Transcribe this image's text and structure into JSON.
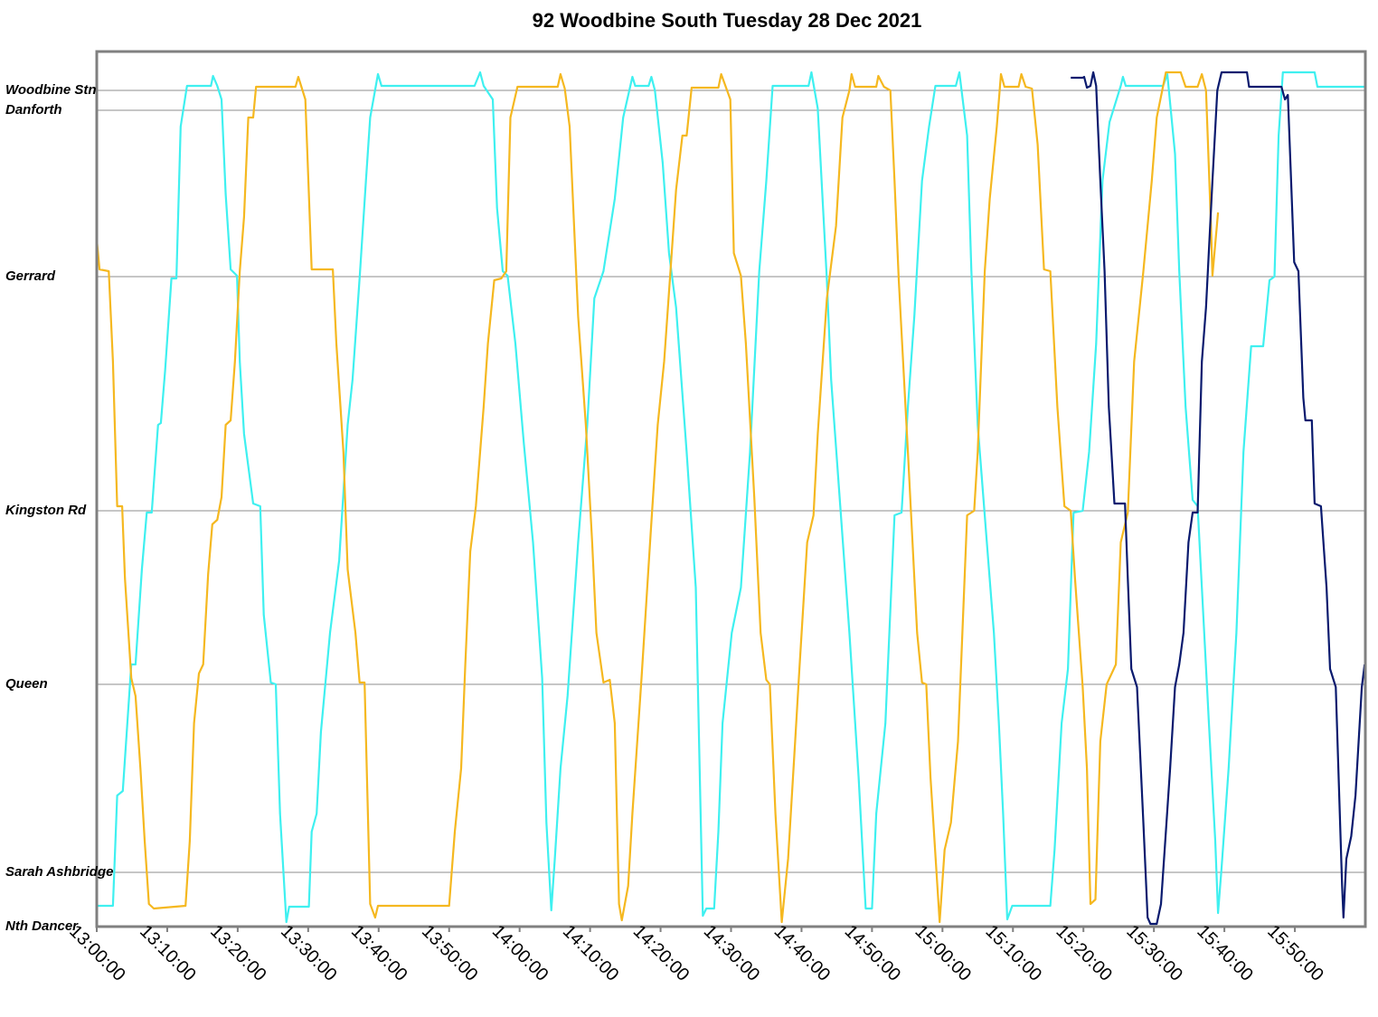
{
  "chart_data": {
    "type": "line",
    "title": "92 Woodbine South Tuesday 28 Dec 2021",
    "xlim": [
      780,
      960
    ],
    "xticks": [
      {
        "value": 780,
        "label": "13:00:00"
      },
      {
        "value": 790,
        "label": "13:10:00"
      },
      {
        "value": 800,
        "label": "13:20:00"
      },
      {
        "value": 810,
        "label": "13:30:00"
      },
      {
        "value": 820,
        "label": "13:40:00"
      },
      {
        "value": 830,
        "label": "13:50:00"
      },
      {
        "value": 840,
        "label": "14:00:00"
      },
      {
        "value": 850,
        "label": "14:10:00"
      },
      {
        "value": 860,
        "label": "14:20:00"
      },
      {
        "value": 870,
        "label": "14:30:00"
      },
      {
        "value": 880,
        "label": "14:40:00"
      },
      {
        "value": 890,
        "label": "14:50:00"
      },
      {
        "value": 900,
        "label": "15:00:00"
      },
      {
        "value": 910,
        "label": "15:10:00"
      },
      {
        "value": 920,
        "label": "15:20:00"
      },
      {
        "value": 930,
        "label": "15:30:00"
      },
      {
        "value": 940,
        "label": "15:40:00"
      },
      {
        "value": 950,
        "label": "15:50:00"
      }
    ],
    "ylim": [
      0,
      968
    ],
    "yticks": [
      {
        "value": 925,
        "label": "Woodbine Stn"
      },
      {
        "value": 903,
        "label": "Danforth"
      },
      {
        "value": 719,
        "label": "Gerrard"
      },
      {
        "value": 460,
        "label": "Kingston Rd"
      },
      {
        "value": 268,
        "label": "Queen"
      },
      {
        "value": 60,
        "label": "Sarah Ashbridge"
      },
      {
        "value": 0,
        "label": "Nth Dancer"
      }
    ],
    "grid": true,
    "series": [
      {
        "color": "#3ff0f0",
        "x": [
          780.0,
          782.3,
          782.9,
          783.7,
          784.9,
          785.5,
          786.4,
          787.1,
          787.8,
          788.7,
          789.1,
          789.7,
          790.6,
          791.3,
          791.9,
          792.8,
          796.2,
          796.5,
          797.1,
          797.7,
          798.3,
          799.0,
          799.9,
          800.3,
          800.9,
          802.2,
          803.2,
          803.7,
          804.7,
          805.4,
          806.0,
          806.9,
          807.3,
          810.1,
          810.5,
          811.2,
          811.8,
          813.1,
          814.4,
          815.6,
          816.3,
          817.3,
          818.2,
          818.8,
          819.9,
          820.4,
          833.6,
          834.4,
          834.9,
          836.2,
          836.8,
          837.6,
          838.3,
          839.4,
          840.6,
          841.9,
          843.2,
          843.8,
          844.5,
          845.0,
          845.8,
          846.8,
          848.3,
          849.6,
          850.6,
          851.9,
          853.5,
          854.7,
          856.0,
          856.4,
          858.3,
          858.7,
          859.2,
          860.3,
          861.2,
          862.2,
          863.7,
          865.0,
          865.6,
          866.0,
          866.5,
          867.6,
          868.2,
          868.8,
          870.1,
          871.4,
          872.7,
          874.0,
          875.0,
          875.9,
          881.0,
          881.4,
          882.3,
          883.6,
          884.2,
          885.5,
          886.8,
          888.1,
          889.1,
          890.0,
          890.6,
          891.9,
          893.2,
          894.2,
          895.1,
          896.0,
          897.1,
          898.1,
          899.0,
          901.9,
          902.4,
          903.5,
          904.1,
          905.0,
          906.3,
          907.3,
          908.0,
          908.6,
          909.2,
          909.9,
          915.3,
          915.9,
          916.9,
          917.8,
          918.6,
          919.9,
          920.8,
          921.8,
          922.7,
          923.7,
          925.3,
          925.6,
          926.0,
          931.3,
          931.9,
          933.0,
          933.6,
          934.5,
          935.5,
          936.2,
          936.8,
          937.8,
          938.7,
          939.1,
          939.6,
          940.6,
          941.7,
          942.7,
          943.8,
          945.5,
          946.4,
          947.1,
          947.7,
          948.3,
          952.8,
          953.2,
          959.9
        ],
        "values": [
          23,
          23,
          145,
          150,
          290,
          290,
          395,
          458,
          458,
          555,
          557,
          615,
          717,
          717,
          885,
          930,
          930,
          941,
          930,
          915,
          810,
          727,
          720,
          625,
          545,
          468,
          465,
          345,
          270,
          268,
          125,
          5,
          22,
          22,
          105,
          125,
          215,
          325,
          405,
          555,
          605,
          717,
          825,
          895,
          943,
          930,
          930,
          945,
          930,
          915,
          795,
          725,
          720,
          645,
          535,
          425,
          275,
          115,
          18,
          75,
          175,
          255,
          425,
          555,
          695,
          725,
          805,
          895,
          940,
          930,
          930,
          940,
          925,
          845,
          745,
          685,
          525,
          375,
          155,
          12,
          20,
          20,
          105,
          225,
          325,
          375,
          525,
          725,
          825,
          930,
          930,
          945,
          905,
          715,
          605,
          465,
          325,
          165,
          20,
          20,
          125,
          225,
          455,
          458,
          575,
          675,
          825,
          885,
          930,
          930,
          945,
          875,
          725,
          555,
          425,
          325,
          225,
          125,
          8,
          23,
          23,
          85,
          225,
          285,
          458,
          460,
          525,
          645,
          825,
          890,
          930,
          940,
          930,
          930,
          943,
          855,
          725,
          575,
          472,
          465,
          375,
          225,
          95,
          15,
          65,
          175,
          325,
          525,
          642,
          642,
          715,
          719,
          875,
          945,
          945,
          929,
          929
        ]
      },
      {
        "color": "#f5b820",
        "x": [
          780.0,
          780.4,
          781.7,
          782.3,
          782.9,
          783.6,
          784.0,
          784.9,
          785.5,
          786.2,
          786.8,
          787.4,
          788.1,
          792.6,
          793.2,
          793.8,
          794.5,
          795.1,
          795.8,
          796.4,
          797.1,
          797.7,
          798.3,
          799.0,
          799.6,
          800.3,
          800.9,
          801.5,
          802.2,
          802.6,
          808.2,
          808.6,
          809.2,
          809.6,
          810.5,
          813.5,
          814.0,
          815.0,
          815.6,
          816.7,
          817.3,
          818.0,
          818.8,
          819.5,
          819.9,
          830.0,
          830.8,
          831.7,
          832.3,
          833.0,
          833.8,
          834.9,
          835.5,
          836.4,
          837.4,
          838.1,
          838.7,
          839.7,
          845.4,
          845.8,
          846.4,
          847.1,
          848.3,
          849.4,
          850.3,
          850.9,
          851.9,
          852.8,
          853.5,
          854.1,
          854.5,
          855.4,
          856.0,
          857.3,
          858.6,
          859.6,
          860.5,
          861.4,
          862.2,
          863.1,
          863.7,
          864.4,
          868.2,
          868.6,
          869.2,
          869.9,
          870.4,
          871.4,
          872.1,
          873.3,
          874.2,
          875.0,
          875.5,
          876.3,
          877.2,
          878.1,
          879.1,
          879.7,
          880.8,
          881.7,
          882.3,
          883.6,
          884.9,
          885.8,
          886.8,
          887.1,
          887.6,
          890.6,
          890.9,
          891.7,
          892.6,
          893.2,
          893.8,
          895.1,
          896.4,
          897.1,
          897.7,
          898.3,
          899.6,
          900.3,
          901.2,
          902.2,
          903.5,
          904.5,
          905.0,
          906.0,
          906.7,
          907.7,
          908.3,
          908.8,
          910.8,
          911.2,
          911.8,
          912.7,
          913.5,
          914.4,
          915.3,
          916.3,
          917.3,
          918.2,
          918.8,
          919.9,
          920.5,
          921.0,
          921.7,
          922.4,
          923.3,
          924.6,
          925.3,
          926.3,
          927.2,
          928.5,
          929.7,
          930.4,
          931.7,
          933.8,
          934.5,
          936.2,
          936.8,
          937.4,
          938.1,
          938.3,
          938.7,
          939.1
        ],
        "values": [
          760,
          727,
          725,
          625,
          465,
          465,
          385,
          275,
          255,
          175,
          95,
          25,
          20,
          23,
          95,
          225,
          280,
          290,
          390,
          445,
          450,
          475,
          555,
          560,
          625,
          725,
          785,
          895,
          895,
          929,
          929,
          940,
          925,
          915,
          727,
          727,
          645,
          525,
          395,
          325,
          270,
          270,
          25,
          10,
          23,
          23,
          105,
          175,
          290,
          415,
          465,
          575,
          645,
          715,
          717,
          725,
          895,
          929,
          929,
          943,
          927,
          885,
          675,
          555,
          425,
          325,
          270,
          273,
          225,
          25,
          7,
          45,
          125,
          275,
          435,
          555,
          625,
          725,
          815,
          875,
          875,
          928,
          928,
          943,
          930,
          915,
          745,
          720,
          645,
          475,
          325,
          273,
          268,
          125,
          5,
          75,
          205,
          285,
          425,
          455,
          545,
          695,
          775,
          895,
          925,
          943,
          929,
          929,
          941,
          929,
          925,
          825,
          715,
          525,
          325,
          270,
          268,
          165,
          5,
          85,
          115,
          205,
          455,
          460,
          525,
          725,
          805,
          885,
          943,
          929,
          929,
          943,
          929,
          927,
          865,
          727,
          725,
          575,
          465,
          460,
          385,
          265,
          175,
          25,
          30,
          205,
          268,
          290,
          425,
          458,
          625,
          725,
          825,
          895,
          945,
          945,
          929,
          929,
          943,
          925,
          775,
          720,
          755,
          790
        ]
      },
      {
        "color": "#0a1a6e",
        "x": [
          918.2,
          919.9,
          920.1,
          920.5,
          921.0,
          921.4,
          921.8,
          922.4,
          923.0,
          923.6,
          924.4,
          925.9,
          926.3,
          926.8,
          927.6,
          928.5,
          929.1,
          929.5,
          930.4,
          931.0,
          931.7,
          932.3,
          933.0,
          933.6,
          934.2,
          934.9,
          935.5,
          936.2,
          936.8,
          937.4,
          938.3,
          939.0,
          939.6,
          943.2,
          943.5,
          948.1,
          948.6,
          949.0,
          949.9,
          950.5,
          951.2,
          951.5,
          952.4,
          952.8,
          953.7,
          954.5,
          955.0,
          955.8,
          956.7,
          956.9,
          957.3,
          958.0,
          958.6,
          959.5,
          959.9
        ],
        "values": [
          939,
          939,
          940,
          928,
          930,
          945,
          930,
          825,
          725,
          575,
          468,
          468,
          385,
          285,
          265,
          115,
          10,
          3,
          3,
          25,
          105,
          175,
          265,
          290,
          325,
          425,
          458,
          458,
          625,
          685,
          825,
          925,
          945,
          945,
          929,
          929,
          915,
          920,
          735,
          725,
          585,
          560,
          560,
          468,
          465,
          375,
          285,
          265,
          45,
          10,
          75,
          100,
          145,
          265,
          290
        ]
      }
    ]
  }
}
